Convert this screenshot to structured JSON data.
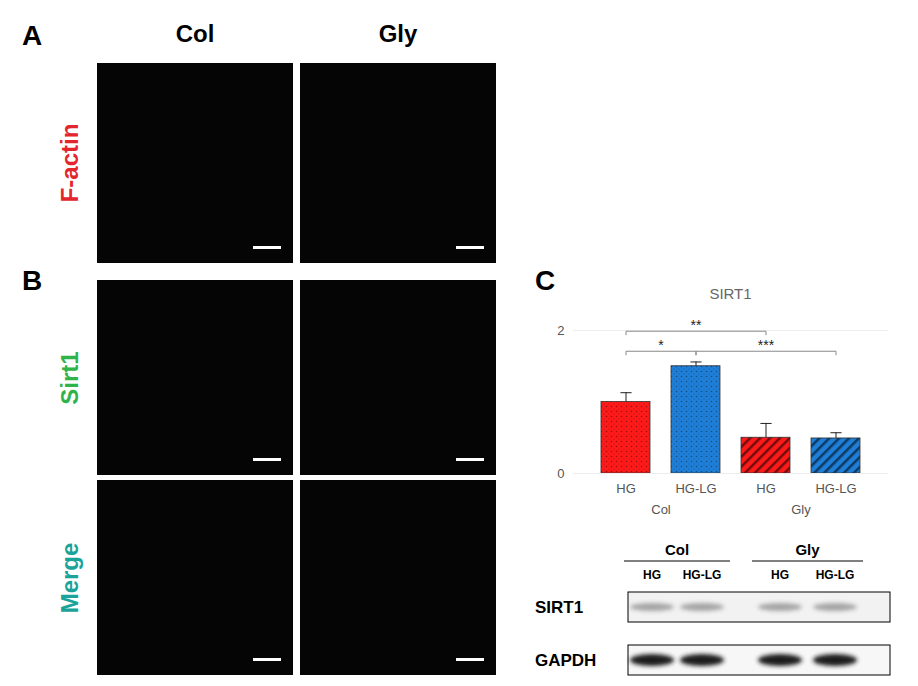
{
  "panels": {
    "A": {
      "label": "A",
      "columns": [
        "Col",
        "Gly"
      ],
      "rows": [
        {
          "label": "F-actin",
          "color": "#e3262d"
        }
      ]
    },
    "B": {
      "label": "B",
      "rows": [
        {
          "label": "Sirt1",
          "color": "#2fb34a"
        },
        {
          "label": "Merge",
          "color": "#19a39a"
        }
      ]
    },
    "C": {
      "label": "C"
    }
  },
  "chart_data": {
    "type": "bar",
    "title": "SIRT1",
    "categories": [
      "HG",
      "HG-LG",
      "HG",
      "HG-LG"
    ],
    "groups": [
      "Col",
      "Col",
      "Gly",
      "Gly"
    ],
    "values": [
      1.0,
      1.5,
      0.5,
      0.49
    ],
    "errors": [
      0.13,
      0.06,
      0.2,
      0.08
    ],
    "colors": [
      "#ff1a1a",
      "#1f7fd8",
      "#ff1a1a",
      "#1f7fd8"
    ],
    "ylim": [
      0,
      2
    ],
    "yticks": [
      0,
      2
    ],
    "grid": true,
    "significance": [
      {
        "from": 0,
        "to": 1,
        "label": "*"
      },
      {
        "from": 0,
        "to": 2,
        "label": "**"
      },
      {
        "from": 1,
        "to": 3,
        "label": "***"
      }
    ]
  },
  "blot": {
    "groups": [
      "Col",
      "Gly"
    ],
    "lanes": [
      "HG",
      "HG-LG",
      "HG",
      "HG-LG"
    ],
    "rows": [
      "SIRT1",
      "GAPDH"
    ]
  }
}
